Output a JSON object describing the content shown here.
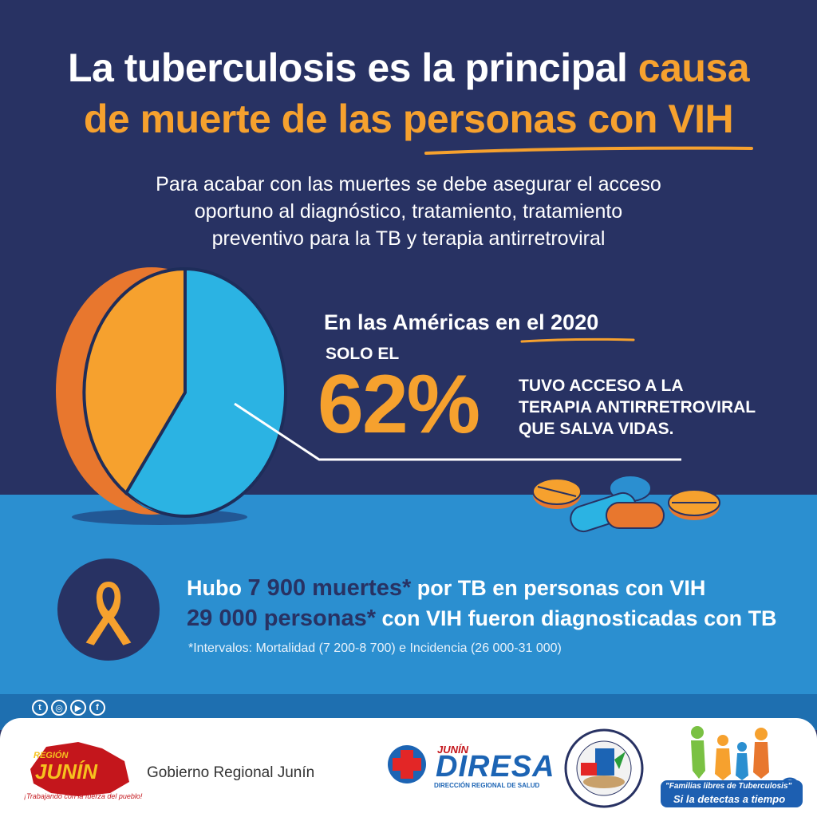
{
  "title": {
    "line1_white": "La tuberculosis es la principal",
    "line1_orange": "causa",
    "line2_orange": "de muerte de las personas con VIH"
  },
  "subtitle": {
    "line1": "Para acabar con las muertes se debe asegurar el acceso",
    "line2": "oportuno al diagnóstico, tratamiento, tratamiento",
    "line3": "preventivo para la TB y terapia antirretroviral"
  },
  "stat": {
    "region_label": "En las Américas",
    "year_label": "en el 2020",
    "prefix": "SOLO EL",
    "percent_text": "62%",
    "percent_value": 62,
    "desc_line1": "TUVO ACCESO A LA",
    "desc_line2": "TERAPIA ANTIRRETROVIRAL",
    "desc_line3": "QUE SALVA VIDAS."
  },
  "facts": {
    "row1_a": "Hubo",
    "row1_hl": "7 900 muertes*",
    "row1_b": "por TB en personas con VIH",
    "row2_hl": "29 000 personas*",
    "row2_b": "con VIH fueron diagnosticadas con TB",
    "note": "*Intervalos: Mortalidad (7 200-8 700) e Incidencia (26 000-31 000)"
  },
  "social_icons": [
    "twitter-icon",
    "instagram-icon",
    "youtube-icon",
    "facebook-icon"
  ],
  "footer": {
    "gov_label": "Gobierno Regional Junín",
    "junin_logo_text": "JUNÍN",
    "junin_region_text": "REGIÓN",
    "junin_slogan": "¡Trabajando con la fuerza del pueblo!",
    "diresa_small": "JUNÍN",
    "diresa_big": "DIRESA",
    "diresa_sub": "DIRECCIÓN REGIONAL DE SALUD",
    "familias_line1": "\"Familias libres de Tuberculosis\"",
    "familias_line2": "Si la detectas a tiempo"
  },
  "colors": {
    "navy": "#283263",
    "orange": "#f6a12e",
    "sky": "#2b8fd0",
    "pie_blue": "#2bb3e3",
    "pie_orange": "#f6a12e"
  }
}
